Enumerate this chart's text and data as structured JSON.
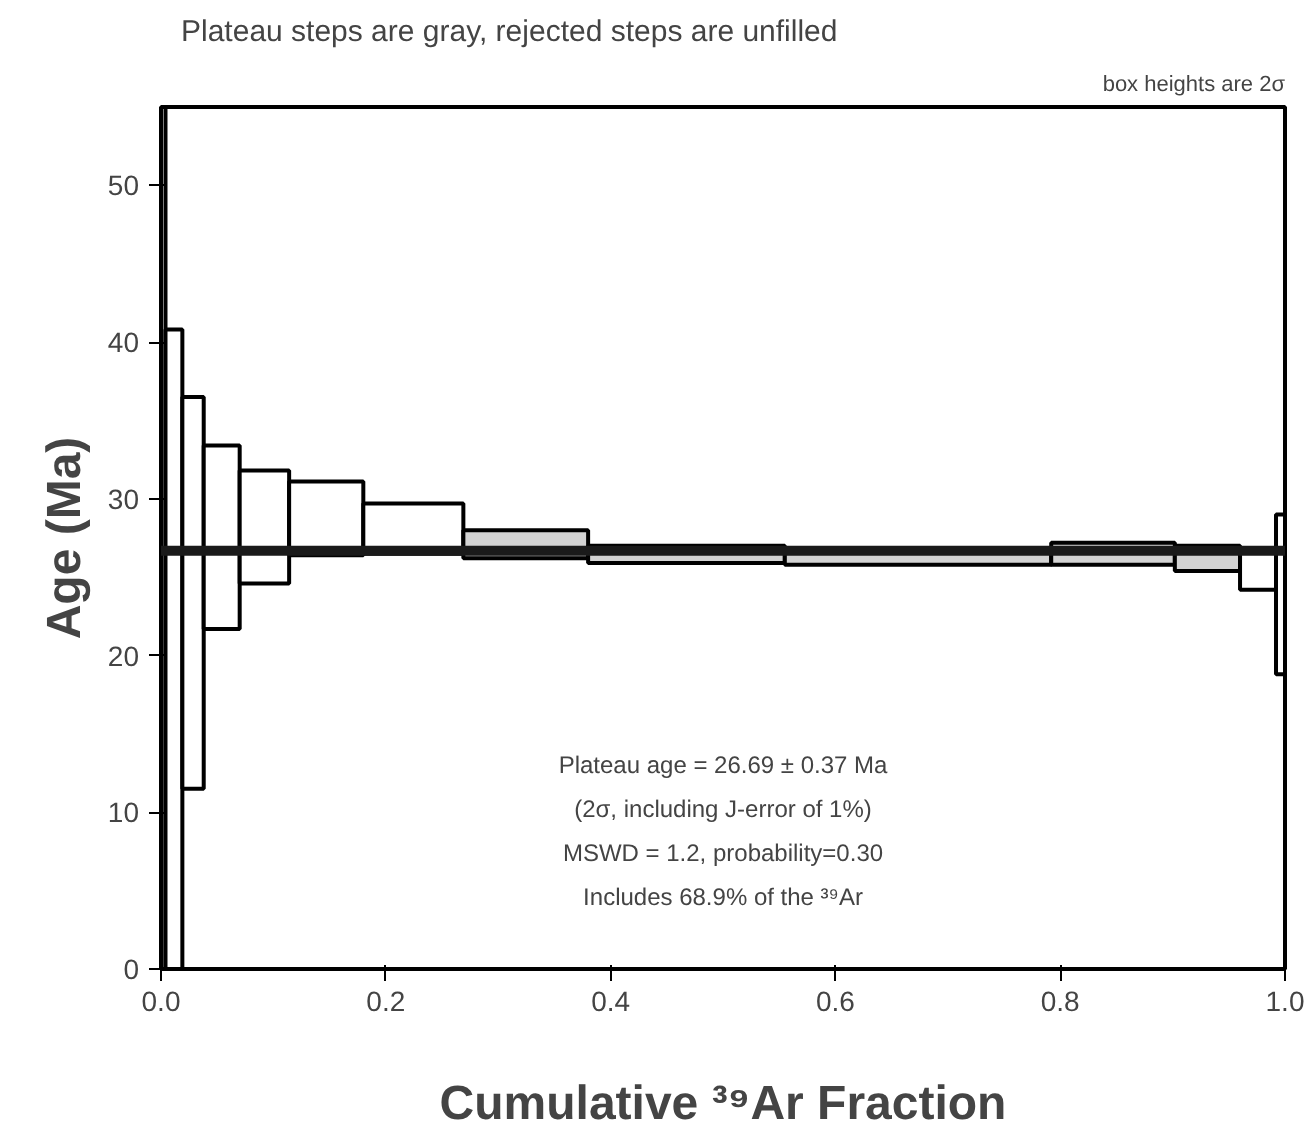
{
  "chart_data": {
    "type": "histogram",
    "title": "Plateau steps are gray, rejected steps are unfilled",
    "xlabel": "Cumulative ³⁹Ar Fraction",
    "ylabel": "Age (Ma)",
    "bins": [
      0,
      0.004,
      0.019,
      0.038,
      0.07,
      0.114,
      0.18,
      0.269,
      0.38,
      0.555,
      0.792,
      0.902,
      0.96,
      0.992,
      1.0
    ],
    "base": [
      0,
      0,
      11.5,
      21.7,
      24.6,
      26.4,
      26.5,
      26.2,
      25.9,
      25.8,
      25.8,
      25.4,
      24.2,
      18.8
    ],
    "values": [
      55,
      40.8,
      25.0,
      11.7,
      7.2,
      4.7,
      3.2,
      1.8,
      1.1,
      0.9,
      1.4,
      1.6,
      2.4,
      10.2
    ],
    "colors": [
      "#ffffff",
      "#ffffff",
      "#ffffff",
      "#ffffff",
      "#ffffff",
      "#ffffff",
      "#ffffff",
      "#d3d3d3",
      "#d3d3d3",
      "#d3d3d3",
      "#d3d3d3",
      "#d3d3d3",
      "#ffffff",
      "#ffffff"
    ],
    "ref_lines": [
      {
        "axis": "y",
        "value": 26.69,
        "label": null,
        "color": "#1a1a1a"
      }
    ],
    "annotations": [
      "box heights are 2σ",
      "Plateau age = 26.69 ± 0.37 Ma",
      "(2σ, including J-error of 1%)",
      "MSWD = 1.2, probability=0.30",
      "Includes 68.9% of the ³⁹Ar"
    ],
    "xlim": [
      0,
      1.0
    ],
    "ylim": [
      0,
      55
    ],
    "xticks": [
      "0.0",
      0.2,
      0.4,
      0.6,
      0.8,
      "1.0"
    ],
    "yticks": [
      0,
      10,
      20,
      30,
      40,
      50
    ],
    "grid": false
  }
}
